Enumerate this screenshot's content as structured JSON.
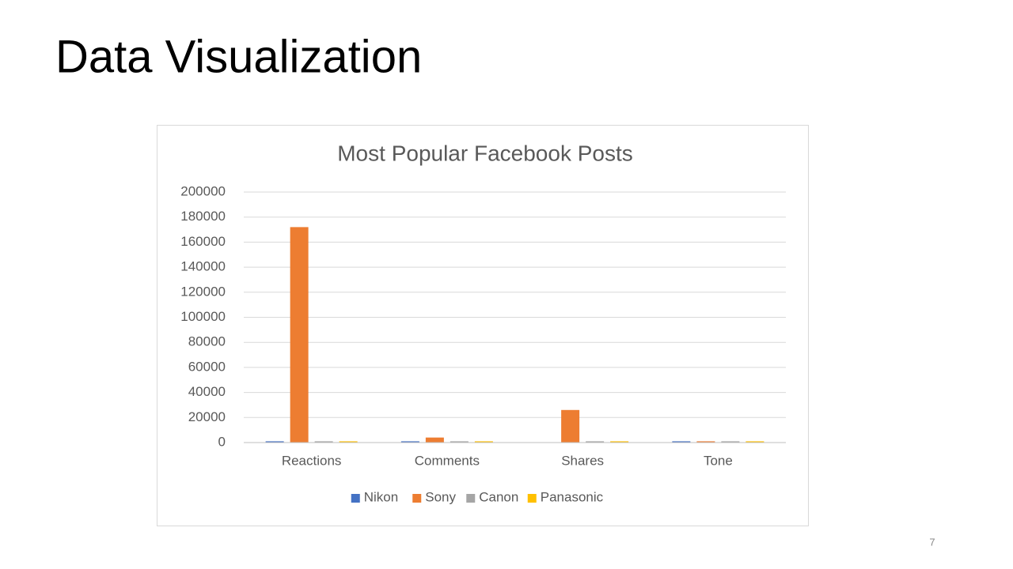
{
  "slide": {
    "title": "Data Visualization",
    "page_number": "7"
  },
  "chart_data": {
    "type": "bar",
    "title": "Most Popular Facebook Posts",
    "categories": [
      "Reactions",
      "Comments",
      "Shares",
      "Tone"
    ],
    "series": [
      {
        "name": "Nikon",
        "color": "#4472c4",
        "values": [
          1000,
          1000,
          0,
          1000
        ]
      },
      {
        "name": "Sony",
        "color": "#ed7d31",
        "values": [
          172000,
          4000,
          26000,
          1000
        ]
      },
      {
        "name": "Canon",
        "color": "#a5a5a5",
        "values": [
          1000,
          1000,
          1000,
          1000
        ]
      },
      {
        "name": "Panasonic",
        "color": "#ffc000",
        "values": [
          1000,
          1000,
          1000,
          1000
        ]
      }
    ],
    "ylim": [
      0,
      200000
    ],
    "yticks": [
      0,
      20000,
      40000,
      60000,
      80000,
      100000,
      120000,
      140000,
      160000,
      180000,
      200000
    ],
    "grid": true,
    "legend": "bottom"
  }
}
